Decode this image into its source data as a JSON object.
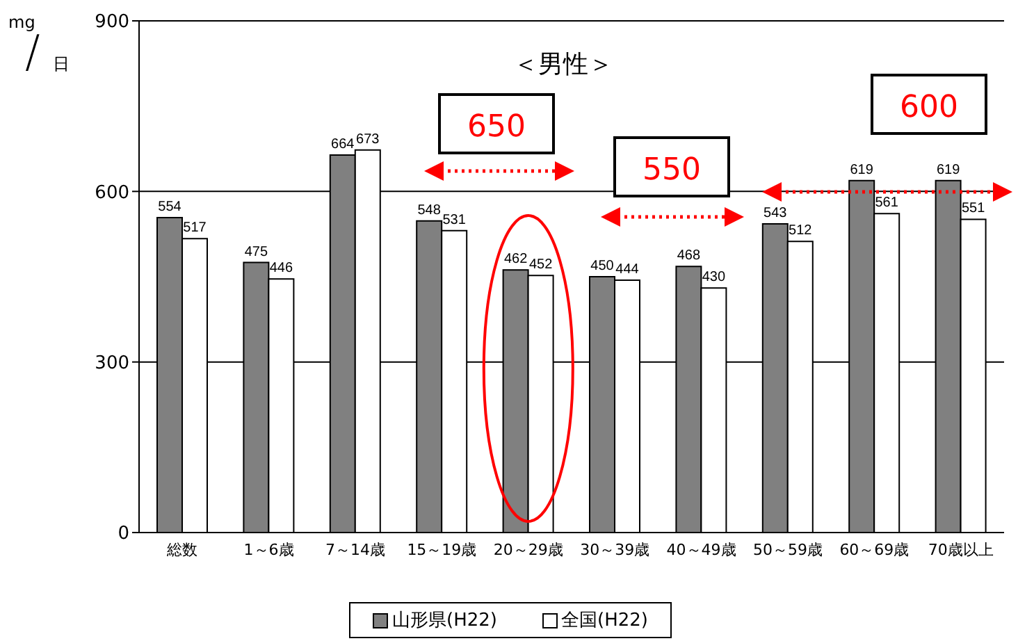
{
  "chart_data": {
    "type": "bar",
    "title": "＜男性＞",
    "ylabel": "mg/日",
    "categories": [
      "総数",
      "1～6歳",
      "7～14歳",
      "15～19歳",
      "20～29歳",
      "30～39歳",
      "40～49歳",
      "50～59歳",
      "60～69歳",
      "70歳以上"
    ],
    "series": [
      {
        "name": "山形県(H22)",
        "color": "#808080",
        "values": [
          554,
          475,
          664,
          548,
          462,
          450,
          468,
          543,
          619,
          619
        ]
      },
      {
        "name": "全国(H22)",
        "color": "#ffffff",
        "values": [
          517,
          446,
          673,
          531,
          452,
          444,
          430,
          512,
          561,
          551
        ]
      }
    ],
    "ylim": [
      0,
      900
    ],
    "yticks": [
      0,
      300,
      600,
      900
    ],
    "grid": "y",
    "legend": "bottom",
    "data_labels": true,
    "annotations": [
      "650",
      "550",
      "600"
    ]
  }
}
